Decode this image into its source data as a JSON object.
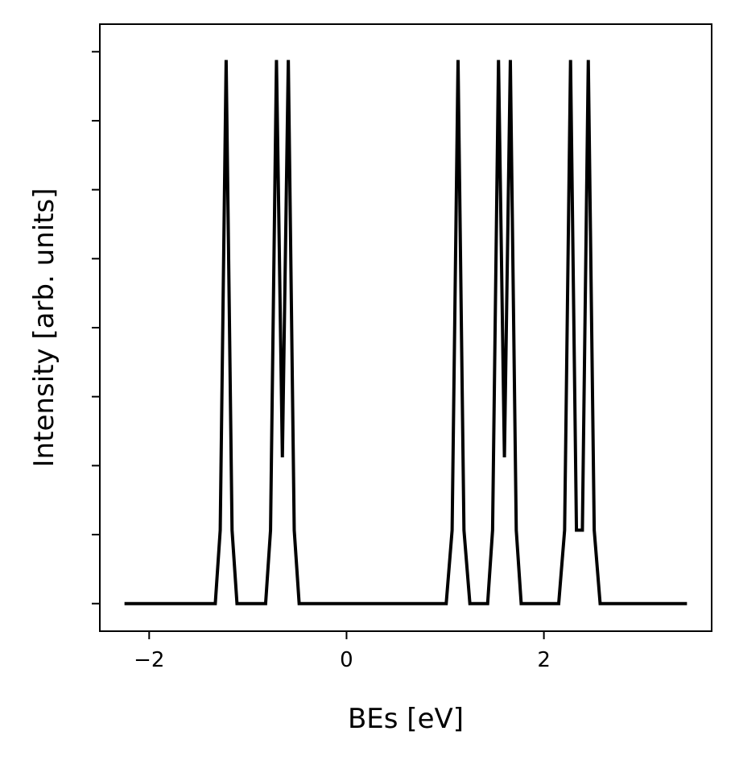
{
  "chart_data": {
    "type": "line",
    "xlabel": "BEs [eV]",
    "ylabel": "Intensity [arb. units]",
    "xlim": [
      -2.5,
      3.7
    ],
    "ylim": [
      -0.05,
      1.05
    ],
    "x_ticks": [
      -2,
      0,
      2
    ],
    "x_tick_labels": [
      "−2",
      "0",
      "2"
    ],
    "y_ticks": [
      0,
      0.125,
      0.25,
      0.375,
      0.5,
      0.625,
      0.75,
      0.875,
      1.0
    ],
    "y_tick_labels_shown": false,
    "grid": false,
    "line_color": "#000000",
    "series": [
      {
        "x": [
          -2.25,
          -1.33,
          -1.28,
          -1.22,
          -1.16,
          -1.11,
          -0.82,
          -0.77,
          -0.71,
          -0.65,
          -0.59,
          -0.53,
          -0.48,
          1.01,
          1.07,
          1.13,
          1.19,
          1.25,
          1.43,
          1.48,
          1.54,
          1.6,
          1.66,
          1.72,
          1.77,
          2.15,
          2.21,
          2.27,
          2.33,
          2.39,
          2.45,
          2.51,
          2.57,
          3.45
        ],
        "y": [
          0,
          0,
          0.133,
          0.985,
          0.133,
          0,
          0,
          0.133,
          0.985,
          0.265,
          0.985,
          0.133,
          0,
          0,
          0.133,
          0.985,
          0.133,
          0,
          0,
          0.133,
          0.985,
          0.265,
          0.985,
          0.133,
          0,
          0,
          0.133,
          0.985,
          0.133,
          0.133,
          0.985,
          0.133,
          0,
          0
        ]
      }
    ]
  }
}
